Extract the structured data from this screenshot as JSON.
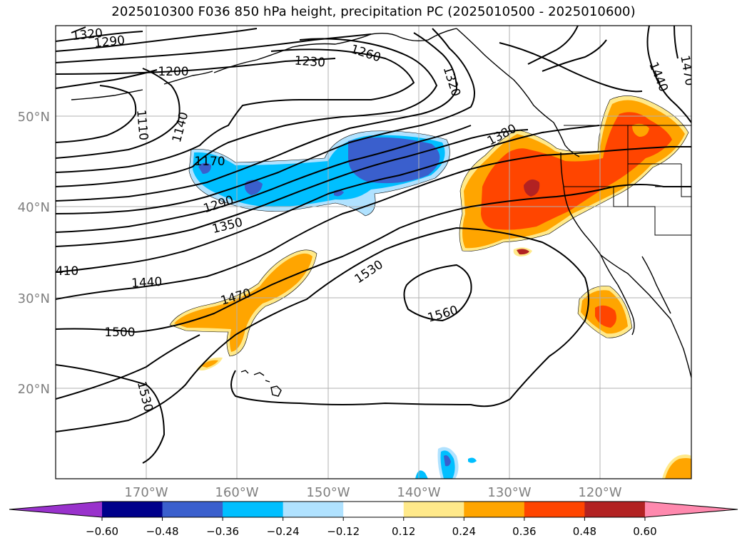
{
  "title": "2025010300 F036 850 hPa height, precipitation PC (2025010500 - 2025010600)",
  "lat_labels": [
    "50°N",
    "40°N",
    "30°N",
    "20°N"
  ],
  "lon_labels": [
    "170°W",
    "160°W",
    "150°W",
    "140°W",
    "130°W",
    "120°W"
  ],
  "contour_labels": [
    "1320",
    "1290",
    "1200",
    "1230",
    "1260",
    "1320",
    "1440",
    "1470",
    "1110",
    "1140",
    "1170",
    "1380",
    "1290",
    "1350",
    "410",
    "1440",
    "1470",
    "1530",
    "1560",
    "1500",
    "1530"
  ],
  "colorbar": {
    "tick_labels": [
      "−0.60",
      "−0.48",
      "−0.36",
      "−0.24",
      "−0.12",
      "0.12",
      "0.24",
      "0.36",
      "0.48",
      "0.60"
    ],
    "colors": [
      "#9932cc",
      "#00008b",
      "#3a5fcd",
      "#00bfff",
      "#b0e2ff",
      "#ffffff",
      "#ffe98a",
      "#ffa500",
      "#ff4500",
      "#b22222",
      "#ff89ae"
    ]
  },
  "map_extent": {
    "lon": [
      -180,
      -110
    ],
    "lat": [
      10,
      60
    ]
  }
}
